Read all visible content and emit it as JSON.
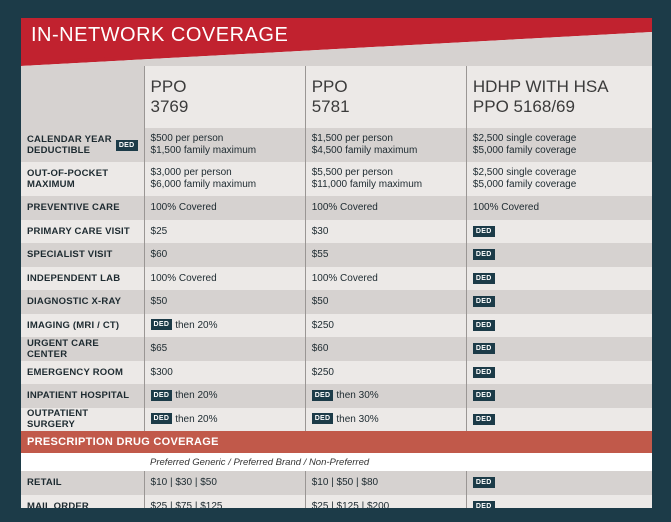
{
  "header": {
    "title": "IN-NETWORK COVERAGE"
  },
  "plans": [
    {
      "line1": "PPO",
      "line2": "3769"
    },
    {
      "line1": "PPO",
      "line2": "5781"
    },
    {
      "line1": "HDHP WITH HSA",
      "line2": "PPO 5168/69"
    }
  ],
  "ded_label": "DED",
  "rows": [
    {
      "label": "CALENDAR YEAR DEDUCTIBLE",
      "has_ded_badge": true,
      "ppo1": [
        "$500 per person",
        "$1,500 family maximum"
      ],
      "ppo2": [
        "$1,500 per person",
        "$4,500 family maximum"
      ],
      "hdhp": [
        "$2,500 single coverage",
        "$5,000 family coverage"
      ]
    },
    {
      "label": "OUT-OF-POCKET MAXIMUM",
      "ppo1": [
        "$3,000 per person",
        "$6,000 family maximum"
      ],
      "ppo2": [
        "$5,500 per person",
        "$11,000 family maximum"
      ],
      "hdhp": [
        "$2,500 single coverage",
        "$5,000 family coverage"
      ]
    },
    {
      "label": "PREVENTIVE CARE",
      "ppo1": "100% Covered",
      "ppo2": "100% Covered",
      "hdhp": "100% Covered"
    },
    {
      "label": "PRIMARY CARE VISIT",
      "ppo1": "$25",
      "ppo2": "$30",
      "hdhp": "DED"
    },
    {
      "label": "SPECIALIST VISIT",
      "ppo1": "$60",
      "ppo2": "$55",
      "hdhp": "DED"
    },
    {
      "label": "INDEPENDENT LAB",
      "ppo1": "100% Covered",
      "ppo2": "100% Covered",
      "hdhp": "DED"
    },
    {
      "label": "DIAGNOSTIC X-RAY",
      "ppo1": "$50",
      "ppo2": "$50",
      "hdhp": "DED"
    },
    {
      "label": "IMAGING (MRI / CT)",
      "ppo1": "then 20%",
      "ppo2": "$250",
      "hdhp": "DED"
    },
    {
      "label": "URGENT CARE CENTER",
      "ppo1": "$65",
      "ppo2": "$60",
      "hdhp": "DED"
    },
    {
      "label": "EMERGENCY ROOM",
      "ppo1": "$300",
      "ppo2": "$250",
      "hdhp": "DED"
    },
    {
      "label": "INPATIENT HOSPITAL",
      "ppo1": "then 20%",
      "ppo2": "then 30%",
      "hdhp": "DED"
    },
    {
      "label": "OUTPATIENT SURGERY",
      "ppo1": "then 20%",
      "ppo2": "then 30%",
      "hdhp": "DED"
    }
  ],
  "rx": {
    "title": "PRESCRIPTION DRUG COVERAGE",
    "subtitle": "Preferred Generic / Preferred Brand / Non-Preferred",
    "rows": [
      {
        "label": "RETAIL",
        "ppo1": "$10  |  $30  |  $50",
        "ppo2": "$10  |  $50  |  $80",
        "hdhp": "DED"
      },
      {
        "label": "MAIL ORDER",
        "ppo1": "$25  |  $75  |  $125",
        "ppo2": "$25  |  $125  |  $200",
        "hdhp": "DED"
      }
    ]
  },
  "colors": {
    "navy": "#1c3b48",
    "red": "#c1222f",
    "rx_band": "#c1594a",
    "row_gray": "#d6d2d0",
    "row_light": "#ece9e7"
  }
}
